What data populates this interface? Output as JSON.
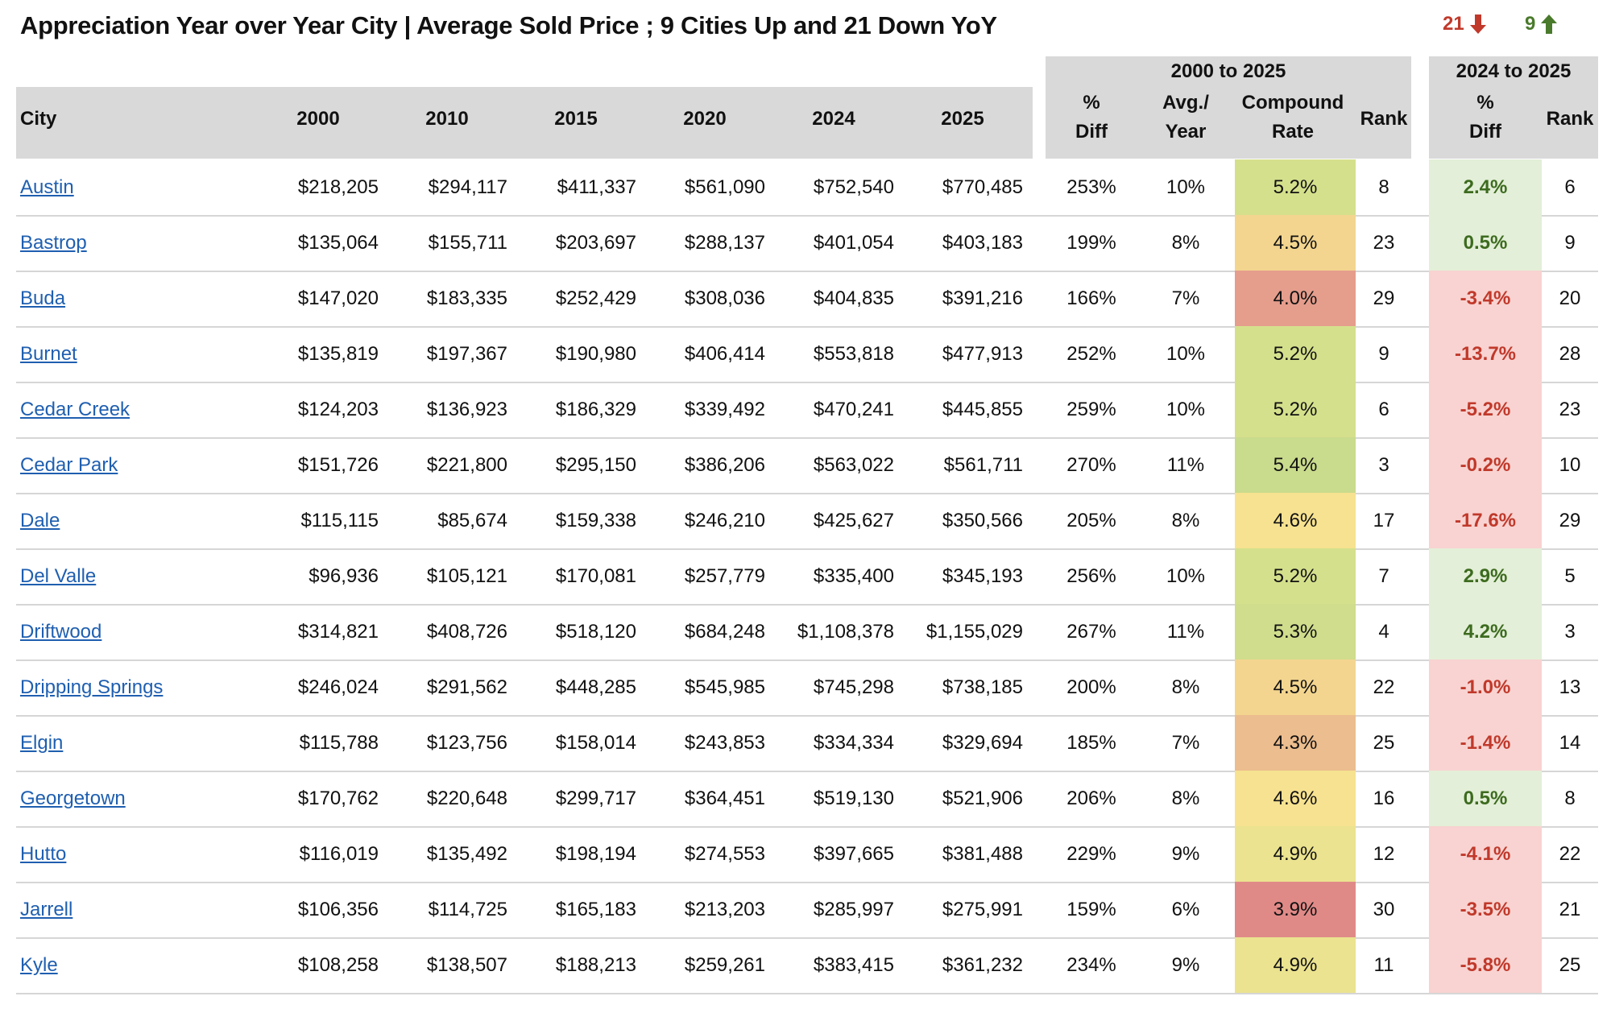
{
  "title": "Appreciation Year over Year City | Average Sold Price ; 9 Cities Up and 21 Down YoY",
  "summary": {
    "down_count": "21",
    "down_icon": "arrow-down-icon",
    "down_color": "#c0392b",
    "up_count": "9",
    "up_icon": "arrow-up-icon",
    "up_color": "#4a7a2c"
  },
  "headers": {
    "city": "City",
    "y2000": "2000",
    "y2010": "2010",
    "y2015": "2015",
    "y2020": "2020",
    "y2024": "2024",
    "y2025": "2025",
    "group_long": "2000 to 2025",
    "pct_diff": [
      "%",
      "Diff"
    ],
    "avg_year": [
      "Avg./",
      "Year"
    ],
    "compound": [
      "Compound",
      "Rate"
    ],
    "rank": "Rank",
    "group_short": "2024 to 2025",
    "pct_diff2": [
      "%",
      "Diff"
    ],
    "rank2": "Rank"
  },
  "colors": {
    "header_bg": "#d9d9d9",
    "positive_text": "#3d6b1f",
    "negative_text": "#c0392b",
    "positive_bg": "#e3efd8",
    "negative_bg": "#f8d3d1",
    "link": "#1f5fb0"
  },
  "rows": [
    {
      "city": "Austin",
      "y2000": "$218,205",
      "y2010": "$294,117",
      "y2015": "$411,337",
      "y2020": "$561,090",
      "y2024": "$752,540",
      "y2025": "$770,485",
      "pct": "253%",
      "avg": "10%",
      "rate": "5.2%",
      "rate_color": "#d5e08c",
      "rank": "8",
      "yoy": "2.4%",
      "yoy_dir": "up",
      "rank2": "6"
    },
    {
      "city": "Bastrop",
      "y2000": "$135,064",
      "y2010": "$155,711",
      "y2015": "$203,697",
      "y2020": "$288,137",
      "y2024": "$401,054",
      "y2025": "$403,183",
      "pct": "199%",
      "avg": "8%",
      "rate": "4.5%",
      "rate_color": "#f3d58f",
      "rank": "23",
      "yoy": "0.5%",
      "yoy_dir": "up",
      "rank2": "9"
    },
    {
      "city": "Buda",
      "y2000": "$147,020",
      "y2010": "$183,335",
      "y2015": "$252,429",
      "y2020": "$308,036",
      "y2024": "$404,835",
      "y2025": "$391,216",
      "pct": "166%",
      "avg": "7%",
      "rate": "4.0%",
      "rate_color": "#e59d8c",
      "rank": "29",
      "yoy": "-3.4%",
      "yoy_dir": "down",
      "rank2": "20"
    },
    {
      "city": "Burnet",
      "y2000": "$135,819",
      "y2010": "$197,367",
      "y2015": "$190,980",
      "y2020": "$406,414",
      "y2024": "$553,818",
      "y2025": "$477,913",
      "pct": "252%",
      "avg": "10%",
      "rate": "5.2%",
      "rate_color": "#d5e08c",
      "rank": "9",
      "yoy": "-13.7%",
      "yoy_dir": "down",
      "rank2": "28"
    },
    {
      "city": "Cedar Creek",
      "y2000": "$124,203",
      "y2010": "$136,923",
      "y2015": "$186,329",
      "y2020": "$339,492",
      "y2024": "$470,241",
      "y2025": "$445,855",
      "pct": "259%",
      "avg": "10%",
      "rate": "5.2%",
      "rate_color": "#d5e08c",
      "rank": "6",
      "yoy": "-5.2%",
      "yoy_dir": "down",
      "rank2": "23"
    },
    {
      "city": "Cedar Park",
      "y2000": "$151,726",
      "y2010": "$221,800",
      "y2015": "$295,150",
      "y2020": "$386,206",
      "y2024": "$563,022",
      "y2025": "$561,711",
      "pct": "270%",
      "avg": "11%",
      "rate": "5.4%",
      "rate_color": "#c9db8c",
      "rank": "3",
      "yoy": "-0.2%",
      "yoy_dir": "down",
      "rank2": "10"
    },
    {
      "city": "Dale",
      "y2000": "$115,115",
      "y2010": "$85,674",
      "y2015": "$159,338",
      "y2020": "$246,210",
      "y2024": "$425,627",
      "y2025": "$350,566",
      "pct": "205%",
      "avg": "8%",
      "rate": "4.6%",
      "rate_color": "#f6e290",
      "rank": "17",
      "yoy": "-17.6%",
      "yoy_dir": "down",
      "rank2": "29"
    },
    {
      "city": "Del Valle",
      "y2000": "$96,936",
      "y2010": "$105,121",
      "y2015": "$170,081",
      "y2020": "$257,779",
      "y2024": "$335,400",
      "y2025": "$345,193",
      "pct": "256%",
      "avg": "10%",
      "rate": "5.2%",
      "rate_color": "#d5e08c",
      "rank": "7",
      "yoy": "2.9%",
      "yoy_dir": "up",
      "rank2": "5"
    },
    {
      "city": "Driftwood",
      "y2000": "$314,821",
      "y2010": "$408,726",
      "y2015": "$518,120",
      "y2020": "$684,248",
      "y2024": "$1,108,378",
      "y2025": "$1,155,029",
      "pct": "267%",
      "avg": "11%",
      "rate": "5.3%",
      "rate_color": "#cfdd8c",
      "rank": "4",
      "yoy": "4.2%",
      "yoy_dir": "up",
      "rank2": "3"
    },
    {
      "city": "Dripping Springs",
      "y2000": "$246,024",
      "y2010": "$291,562",
      "y2015": "$448,285",
      "y2020": "$545,985",
      "y2024": "$745,298",
      "y2025": "$738,185",
      "pct": "200%",
      "avg": "8%",
      "rate": "4.5%",
      "rate_color": "#f3d58f",
      "rank": "22",
      "yoy": "-1.0%",
      "yoy_dir": "down",
      "rank2": "13"
    },
    {
      "city": "Elgin",
      "y2000": "$115,788",
      "y2010": "$123,756",
      "y2015": "$158,014",
      "y2020": "$243,853",
      "y2024": "$334,334",
      "y2025": "$329,694",
      "pct": "185%",
      "avg": "7%",
      "rate": "4.3%",
      "rate_color": "#ecbd8e",
      "rank": "25",
      "yoy": "-1.4%",
      "yoy_dir": "down",
      "rank2": "14"
    },
    {
      "city": "Georgetown",
      "y2000": "$170,762",
      "y2010": "$220,648",
      "y2015": "$299,717",
      "y2020": "$364,451",
      "y2024": "$519,130",
      "y2025": "$521,906",
      "pct": "206%",
      "avg": "8%",
      "rate": "4.6%",
      "rate_color": "#f6e290",
      "rank": "16",
      "yoy": "0.5%",
      "yoy_dir": "up",
      "rank2": "8"
    },
    {
      "city": "Hutto",
      "y2000": "$116,019",
      "y2010": "$135,492",
      "y2015": "$198,194",
      "y2020": "$274,553",
      "y2024": "$397,665",
      "y2025": "$381,488",
      "pct": "229%",
      "avg": "9%",
      "rate": "4.9%",
      "rate_color": "#ebe38f",
      "rank": "12",
      "yoy": "-4.1%",
      "yoy_dir": "down",
      "rank2": "22"
    },
    {
      "city": "Jarrell",
      "y2000": "$106,356",
      "y2010": "$114,725",
      "y2015": "$165,183",
      "y2020": "$213,203",
      "y2024": "$285,997",
      "y2025": "$275,991",
      "pct": "159%",
      "avg": "6%",
      "rate": "3.9%",
      "rate_color": "#e08a88",
      "rank": "30",
      "yoy": "-3.5%",
      "yoy_dir": "down",
      "rank2": "21"
    },
    {
      "city": "Kyle",
      "y2000": "$108,258",
      "y2010": "$138,507",
      "y2015": "$188,213",
      "y2020": "$259,261",
      "y2024": "$383,415",
      "y2025": "$361,232",
      "pct": "234%",
      "avg": "9%",
      "rate": "4.9%",
      "rate_color": "#ebe38f",
      "rank": "11",
      "yoy": "-5.8%",
      "yoy_dir": "down",
      "rank2": "25"
    }
  ]
}
